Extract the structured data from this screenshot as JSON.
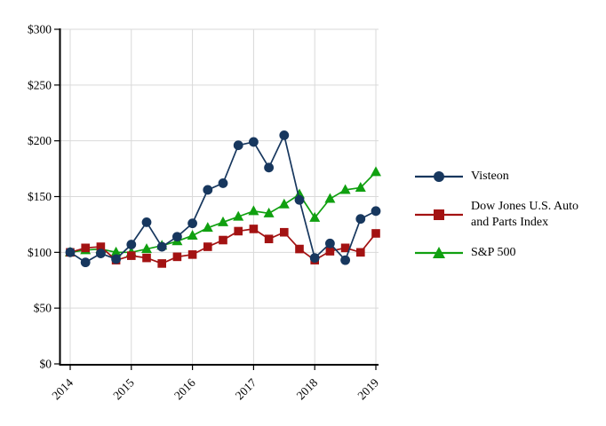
{
  "chart_data": {
    "type": "line",
    "title": "",
    "xlabel": "",
    "ylabel": "",
    "grid": true,
    "grid_color": "#d9d9d9",
    "axis_color": "#000000",
    "legend_position": "right",
    "xlim": [
      2014,
      2019
    ],
    "ylim": [
      0,
      300
    ],
    "x_ticks": [
      2014,
      2015,
      2016,
      2017,
      2018,
      2019
    ],
    "x_tick_labels": [
      "2014",
      "2015",
      "2016",
      "2017",
      "2018",
      "2019"
    ],
    "y_ticks": [
      0,
      50,
      100,
      150,
      200,
      250,
      300
    ],
    "y_tick_labels": [
      "$0",
      "$50",
      "$100",
      "$150",
      "$200",
      "$250",
      "$300"
    ],
    "x": [
      2014,
      2014.25,
      2014.5,
      2014.75,
      2015,
      2015.25,
      2015.5,
      2015.75,
      2016,
      2016.25,
      2016.5,
      2016.75,
      2017,
      2017.25,
      2017.5,
      2017.75,
      2018,
      2018.25,
      2018.5,
      2018.75,
      2019
    ],
    "series": [
      {
        "name": "Visteon",
        "marker": "circle",
        "color": "#17375e",
        "values": [
          100,
          91,
          99,
          94,
          107,
          127,
          105,
          114,
          126,
          156,
          162,
          196,
          199,
          176,
          205,
          147,
          95,
          108,
          93,
          130,
          137
        ]
      },
      {
        "name": "Dow Jones U.S. Auto and Parts Index",
        "marker": "square",
        "color": "#a31212",
        "values": [
          100,
          104,
          105,
          93,
          97,
          95,
          90,
          96,
          98,
          105,
          111,
          119,
          121,
          112,
          118,
          103,
          93,
          101,
          104,
          100,
          117
        ]
      },
      {
        "name": "S&P 500",
        "marker": "triangle",
        "color": "#10a010",
        "values": [
          100,
          102,
          103,
          100,
          100,
          103,
          106,
          110,
          115,
          122,
          127,
          132,
          137,
          135,
          143,
          152,
          131,
          148,
          156,
          158,
          172
        ]
      }
    ]
  }
}
